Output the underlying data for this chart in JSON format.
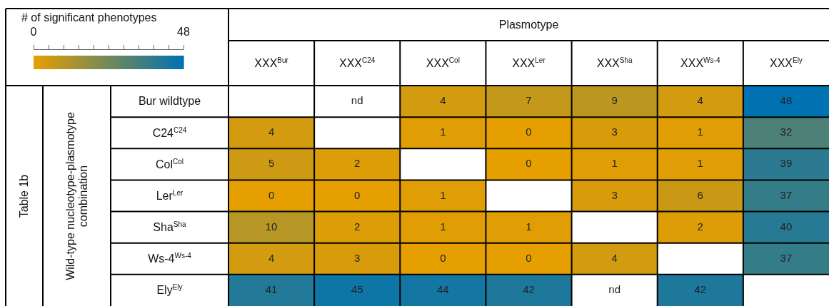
{
  "chart_data": {
    "type": "heatmap",
    "xlabel": "Plasmotype",
    "ylabel": "Wild-type nucleotype-plasmotype combination",
    "clabel": "# of significant phenotypes",
    "annotations": [
      "Table 1b"
    ],
    "categories": [
      "XXX$^{Bur}$",
      "XXX$^{C24}$",
      "XXX$^{Col}$",
      "XXX$^{Ler}$",
      "XXX$^{Sha}$",
      "XXX$^{Ws-4}$",
      "XXX$^{Ely}$"
    ],
    "y_categories": [
      "Bur wildtype",
      "C24$^{C24}$",
      "Col$^{Col}$",
      "Ler$^{Ler}$",
      "Sha$^{Sha}$",
      "Ws-4$^{Ws-4}$",
      "Ely$^{Ely}$"
    ],
    "cells": [
      [
        null,
        null,
        4,
        7,
        9,
        4,
        48
      ],
      [
        4,
        null,
        1,
        0,
        3,
        1,
        32
      ],
      [
        5,
        2,
        null,
        0,
        1,
        1,
        39
      ],
      [
        0,
        0,
        1,
        null,
        3,
        6,
        37
      ],
      [
        10,
        2,
        1,
        1,
        null,
        2,
        40
      ],
      [
        4,
        3,
        0,
        0,
        4,
        null,
        37
      ],
      [
        41,
        45,
        44,
        42,
        null,
        42,
        null
      ]
    ],
    "cell_labels": [
      [
        null,
        "nd",
        "4",
        "7",
        "9",
        "4",
        "48"
      ],
      [
        "4",
        null,
        "1",
        "0",
        "3",
        "1",
        "32"
      ],
      [
        "5",
        "2",
        null,
        "0",
        "1",
        "1",
        "39"
      ],
      [
        "0",
        "0",
        "1",
        null,
        "3",
        "6",
        "37"
      ],
      [
        "10",
        "2",
        "1",
        "1",
        null,
        "2",
        "40"
      ],
      [
        "4",
        "3",
        "0",
        "0",
        "4",
        null,
        "37"
      ],
      [
        "41",
        "45",
        "44",
        "42",
        "nd",
        "42",
        null
      ]
    ],
    "colors": [
      "#e69f00",
      "#0072b2"
    ],
    "clim": [
      0,
      48
    ],
    "cticks": [
      0,
      {
        "value": 4.8,
        "label": null
      },
      {
        "value": 9.6,
        "label": null
      },
      {
        "value": 14.4,
        "label": null
      },
      {
        "value": 19.2,
        "label": null
      },
      {
        "value": 24,
        "label": null
      },
      {
        "value": 28.8,
        "label": null
      },
      {
        "value": 33.6,
        "label": null
      },
      {
        "value": 38.4,
        "label": null
      },
      {
        "value": 43.2,
        "label": null
      },
      48
    ]
  }
}
